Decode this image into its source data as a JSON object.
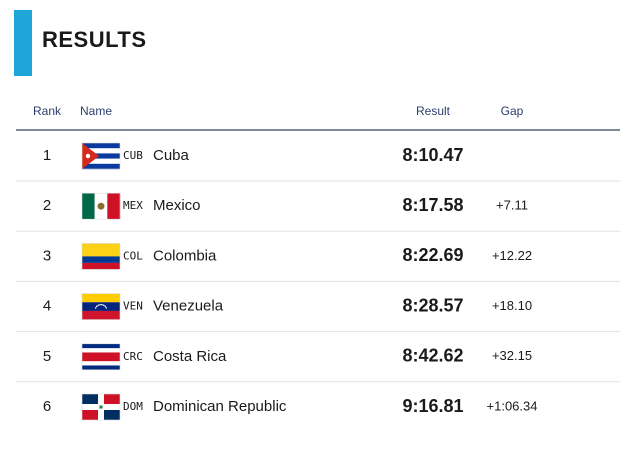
{
  "header": {
    "title": "RESULTS"
  },
  "table": {
    "columns": [
      "Rank",
      "Name",
      "Result",
      "Gap"
    ],
    "rows": [
      {
        "rank": 1,
        "code": "CUB",
        "name": "Cuba",
        "result": "8:10.47",
        "gap": null
      },
      {
        "rank": 2,
        "code": "MEX",
        "name": "Mexico",
        "result": "8:17.58",
        "gap": "+7.11"
      },
      {
        "rank": 3,
        "code": "COL",
        "name": "Colombia",
        "result": "8:22.69",
        "gap": "+12.22"
      },
      {
        "rank": 4,
        "code": "VEN",
        "name": "Venezuela",
        "result": "8:28.57",
        "gap": "+18.10"
      },
      {
        "rank": 5,
        "code": "CRC",
        "name": "Costa Rica",
        "result": "8:42.62",
        "gap": "+32.15"
      },
      {
        "rank": 6,
        "code": "DOM",
        "name": "Dominican Republic",
        "result": "9:16.81",
        "gap": "+1:06.34"
      }
    ]
  }
}
